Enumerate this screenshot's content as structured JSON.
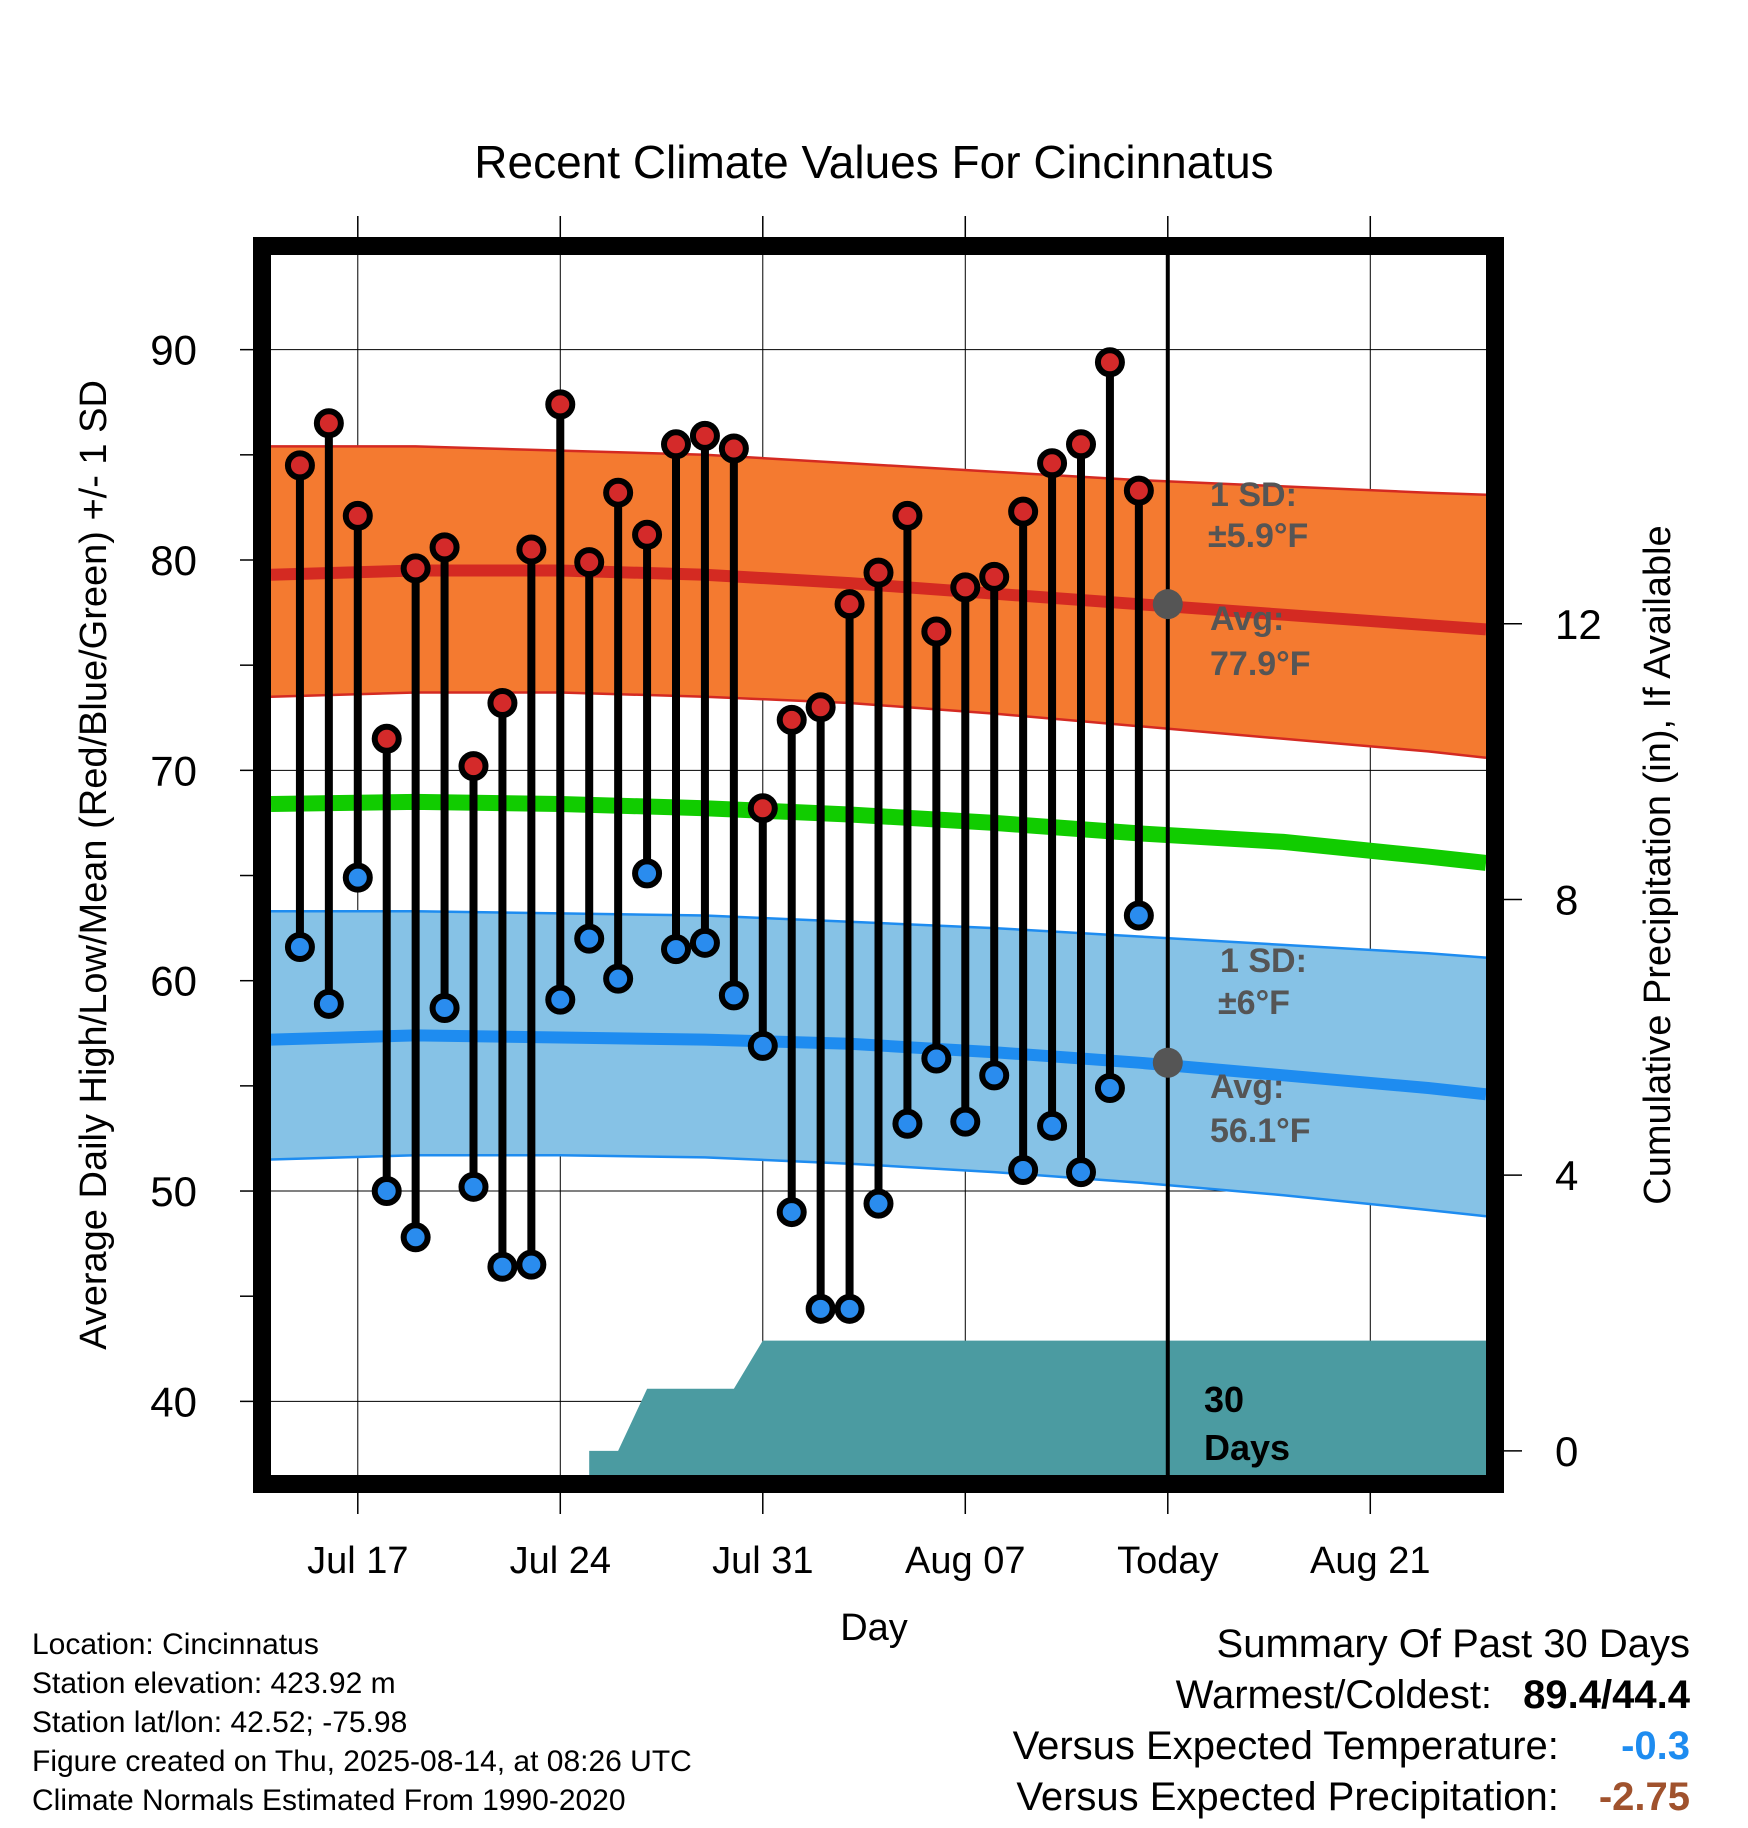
{
  "chart_data": {
    "type": "line",
    "title": "Recent Climate Values For Cincinnatus",
    "xlabel": "Day",
    "ylabel": "Average Daily High/Low/Mean (Red/Blue/Green) +/- 1 SD",
    "y2label": "Cumulative Precipitation (in), If Available",
    "ylim": [
      36.5,
      94.5
    ],
    "y2lim": [
      -0.35,
      17.35
    ],
    "yticks": [
      40,
      50,
      60,
      70,
      80,
      90
    ],
    "y2ticks": [
      0,
      4,
      8,
      12
    ],
    "x_start": "2025-07-14",
    "x_end": "2025-08-25",
    "xticks": [
      {
        "date": "2025-07-17",
        "label": "Jul 17"
      },
      {
        "date": "2025-07-24",
        "label": "Jul 24"
      },
      {
        "date": "2025-07-31",
        "label": "Jul 31"
      },
      {
        "date": "2025-08-07",
        "label": "Aug 07"
      },
      {
        "date": "2025-08-14",
        "label": "Today"
      },
      {
        "date": "2025-08-21",
        "label": "Aug 21"
      }
    ],
    "today": "2025-08-14",
    "grid": true,
    "observed": {
      "dates": [
        "2025-07-15",
        "2025-07-16",
        "2025-07-17",
        "2025-07-18",
        "2025-07-19",
        "2025-07-20",
        "2025-07-21",
        "2025-07-22",
        "2025-07-23",
        "2025-07-24",
        "2025-07-25",
        "2025-07-26",
        "2025-07-27",
        "2025-07-28",
        "2025-07-29",
        "2025-07-30",
        "2025-07-31",
        "2025-08-01",
        "2025-08-02",
        "2025-08-03",
        "2025-08-04",
        "2025-08-05",
        "2025-08-06",
        "2025-08-07",
        "2025-08-08",
        "2025-08-09",
        "2025-08-10",
        "2025-08-11",
        "2025-08-12",
        "2025-08-13"
      ],
      "highs": [
        84.5,
        86.5,
        82.1,
        71.5,
        79.6,
        80.6,
        70.2,
        73.2,
        80.5,
        87.4,
        79.9,
        83.2,
        81.2,
        85.5,
        85.9,
        85.3,
        68.2,
        72.4,
        73.0,
        77.9,
        79.4,
        82.1,
        76.6,
        78.7,
        79.2,
        82.3,
        84.6,
        85.5,
        89.4,
        83.3
      ],
      "lows": [
        61.6,
        58.9,
        64.9,
        50.0,
        47.8,
        58.7,
        50.2,
        46.4,
        46.5,
        59.1,
        62.0,
        60.1,
        65.1,
        61.5,
        61.8,
        59.3,
        56.9,
        49.0,
        44.4,
        44.4,
        49.4,
        53.2,
        56.3,
        53.3,
        55.5,
        51.0,
        53.1,
        50.9,
        54.9,
        63.1
      ]
    },
    "normals": {
      "dates": [
        "2025-07-14",
        "2025-07-19",
        "2025-07-24",
        "2025-07-29",
        "2025-08-03",
        "2025-08-08",
        "2025-08-13",
        "2025-08-18",
        "2025-08-23",
        "2025-08-25"
      ],
      "high_avg": [
        79.3,
        79.5,
        79.5,
        79.3,
        78.9,
        78.4,
        77.9,
        77.4,
        76.9,
        76.7
      ],
      "high_upper": [
        85.4,
        85.4,
        85.2,
        85.0,
        84.6,
        84.2,
        83.8,
        83.5,
        83.2,
        83.1
      ],
      "high_lower": [
        73.5,
        73.7,
        73.7,
        73.5,
        73.2,
        72.7,
        72.1,
        71.5,
        70.9,
        70.6
      ],
      "mean_avg": [
        68.4,
        68.5,
        68.4,
        68.2,
        67.9,
        67.5,
        67.0,
        66.6,
        65.9,
        65.6
      ],
      "low_avg": [
        57.2,
        57.4,
        57.3,
        57.2,
        57.0,
        56.6,
        56.1,
        55.5,
        54.9,
        54.6
      ],
      "low_upper": [
        63.3,
        63.3,
        63.2,
        63.1,
        62.8,
        62.5,
        62.1,
        61.7,
        61.3,
        61.1
      ],
      "low_lower": [
        51.5,
        51.7,
        51.7,
        51.6,
        51.3,
        50.9,
        50.4,
        49.8,
        49.1,
        48.8
      ]
    },
    "precipitation": {
      "dates": [
        "2025-07-25",
        "2025-07-26",
        "2025-07-27",
        "2025-07-28",
        "2025-07-29",
        "2025-07-30",
        "2025-07-31",
        "2025-08-01",
        "2025-08-13"
      ],
      "cumulative": [
        0,
        0,
        0.9,
        0.9,
        0.9,
        0.9,
        1.6,
        1.6,
        1.6
      ]
    },
    "annotations": {
      "high_sd": "1 SD:",
      "high_sd_value": "±5.9°F",
      "high_avg_label": "Avg:",
      "high_avg_value": "77.9°F",
      "high_today": 77.9,
      "low_sd": "1 SD:",
      "low_sd_value": "±6°F",
      "low_avg_label": "Avg:",
      "low_avg_value": "56.1°F",
      "low_today": 56.1,
      "precip_period": "30",
      "precip_period_unit": "Days"
    },
    "colors": {
      "high_band": "#f47a30",
      "high_line": "#d42a22",
      "low_band": "#86c2e6",
      "low_line": "#1e8cf0",
      "mean_line": "#11cc00",
      "precip": "#4b9ba1",
      "high_marker": "#d42a2a",
      "low_marker": "#2a8cee",
      "today_marker": "#555555"
    }
  },
  "meta": {
    "location": "Location: Cincinnatus",
    "elevation": "Station elevation: 423.92 m",
    "latlon": "Station lat/lon: 42.52; -75.98",
    "created": "Figure created on Thu, 2025-08-14, at 08:26 UTC",
    "normals": "Climate Normals Estimated From 1990-2020"
  },
  "summary": {
    "title": "Summary Of Past 30 Days",
    "warm_cold_label": "Warmest/Coldest:",
    "warm_cold_value": "89.4/44.4",
    "temp_label": "Versus Expected Temperature:",
    "temp_value": "-0.3",
    "temp_color": "#1e8cf0",
    "precip_label": "Versus Expected Precipitation:",
    "precip_value": "-2.75",
    "precip_color": "#a0522d"
  }
}
